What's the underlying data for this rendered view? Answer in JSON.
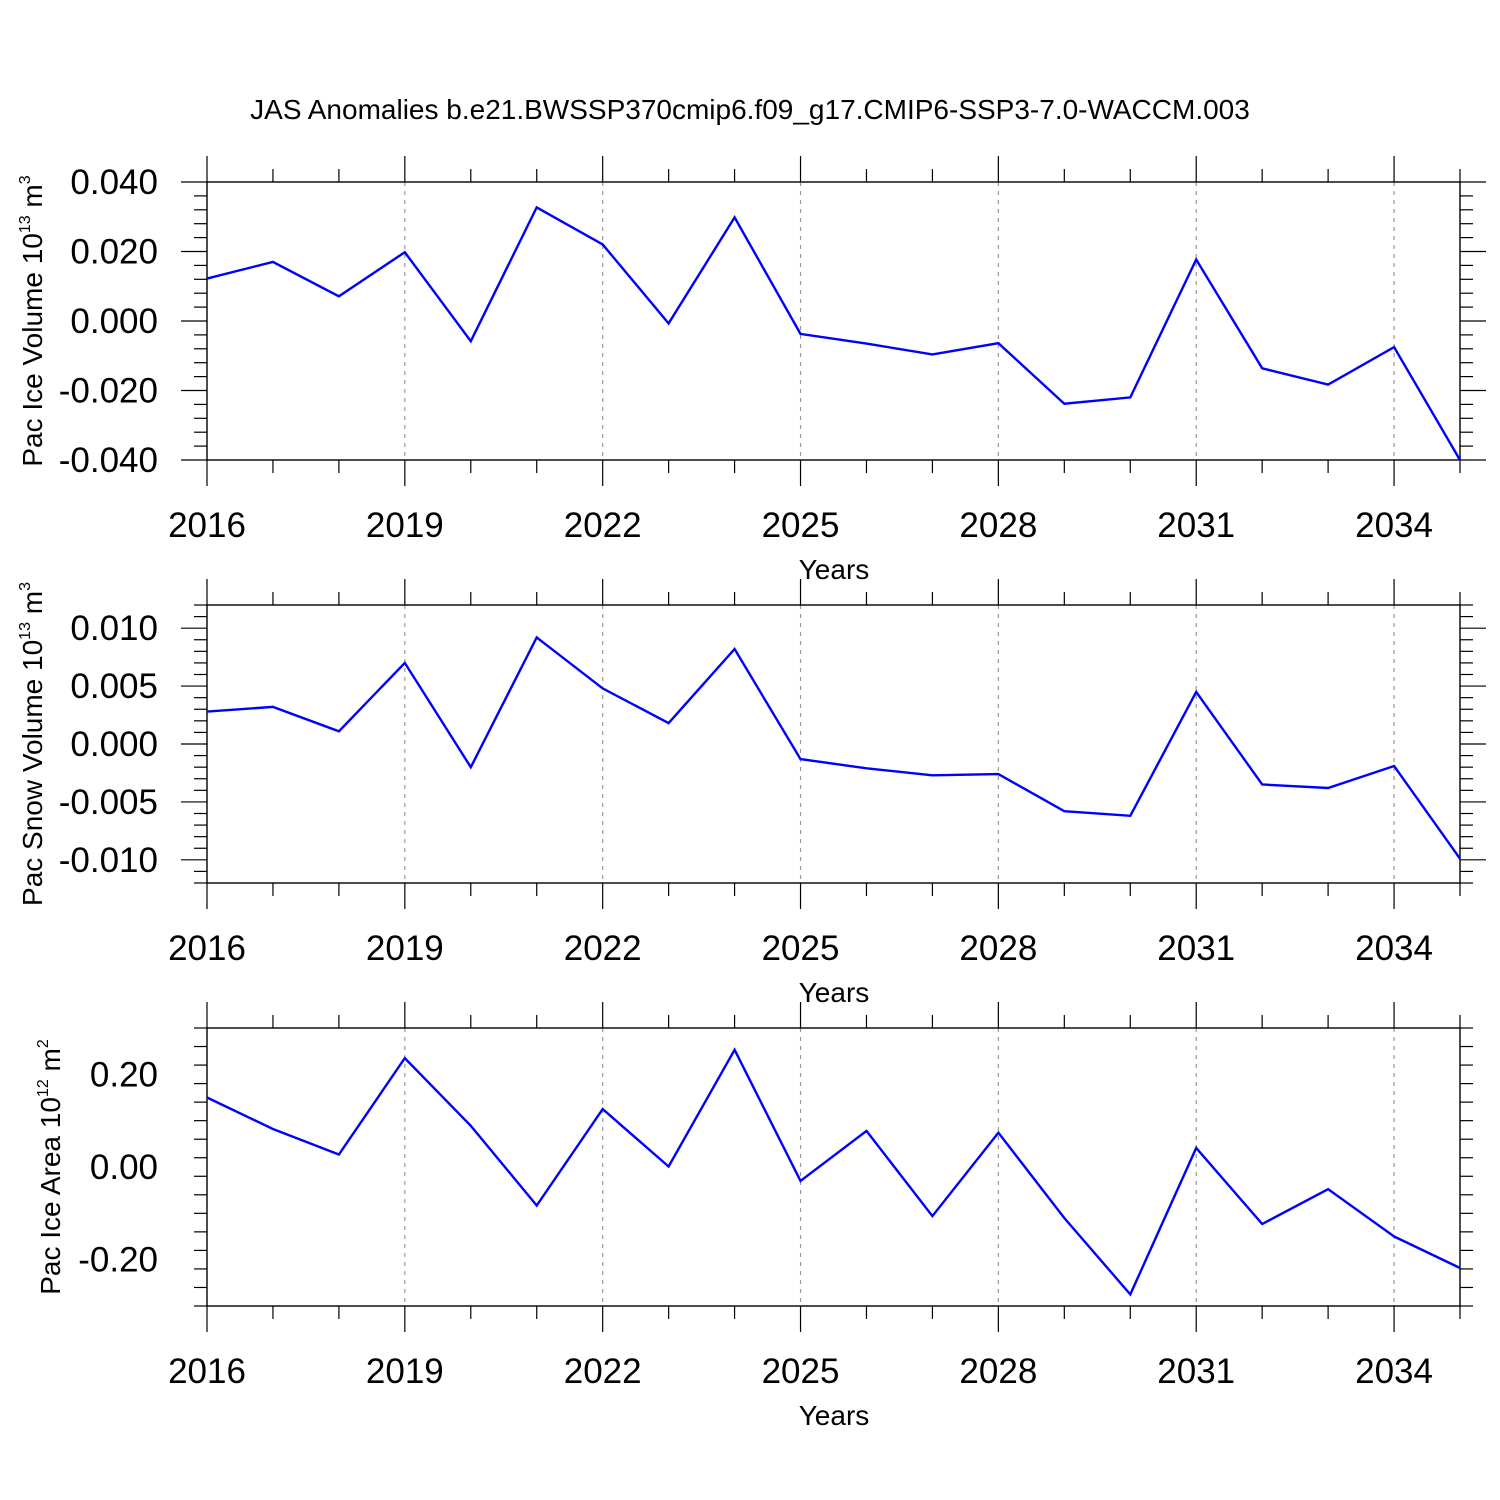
{
  "title": "JAS Anomalies b.e21.BWSSP370cmip6.f09_g17.CMIP6-SSP3-7.0-WACCM.003",
  "colors": {
    "line": "#0000ff",
    "axis": "#000000",
    "grid": "#999999"
  },
  "chart_data": [
    {
      "type": "line",
      "ylabel": {
        "text": "Pac Ice Volume 10",
        "exp": "13",
        "unit": "m",
        "unit_exp": "3"
      },
      "xlabel": "Years",
      "x": [
        2016,
        2017,
        2018,
        2019,
        2020,
        2021,
        2022,
        2023,
        2024,
        2025,
        2026,
        2027,
        2028,
        2029,
        2030,
        2031,
        2032,
        2033,
        2034,
        2035
      ],
      "values": [
        0.0122,
        0.017,
        0.0071,
        0.0198,
        -0.0058,
        0.0327,
        0.022,
        -0.0007,
        0.0298,
        -0.0037,
        -0.0065,
        -0.0096,
        -0.0064,
        -0.0238,
        -0.022,
        0.0177,
        -0.0136,
        -0.0183,
        -0.0075,
        -0.04
      ],
      "xlim": [
        2016,
        2035
      ],
      "ylim": [
        -0.04,
        0.04
      ],
      "xticks": [
        "2016",
        "2019",
        "2022",
        "2025",
        "2028",
        "2031",
        "2034"
      ],
      "yticks": [
        "0.040",
        "0.020",
        "0.000",
        "-0.020",
        "-0.040"
      ],
      "ytick_values": [
        0.04,
        0.02,
        0.0,
        -0.02,
        -0.04
      ],
      "grid": "vertical dashed at major x ticks"
    },
    {
      "type": "line",
      "ylabel": {
        "text": "Pac Snow Volume 10",
        "exp": "13",
        "unit": "m",
        "unit_exp": "3"
      },
      "xlabel": "Years",
      "x": [
        2016,
        2017,
        2018,
        2019,
        2020,
        2021,
        2022,
        2023,
        2024,
        2025,
        2026,
        2027,
        2028,
        2029,
        2030,
        2031,
        2032,
        2033,
        2034,
        2035
      ],
      "values": [
        0.0028,
        0.0032,
        0.0011,
        0.007,
        -0.002,
        0.0092,
        0.0048,
        0.0018,
        0.0082,
        -0.0013,
        -0.0021,
        -0.0027,
        -0.0026,
        -0.0058,
        -0.0062,
        0.0045,
        -0.0035,
        -0.0038,
        -0.0019,
        -0.0099
      ],
      "xlim": [
        2016,
        2035
      ],
      "ylim": [
        -0.012,
        0.012
      ],
      "xticks": [
        "2016",
        "2019",
        "2022",
        "2025",
        "2028",
        "2031",
        "2034"
      ],
      "yticks": [
        "0.010",
        "0.005",
        "0.000",
        "-0.005",
        "-0.010"
      ],
      "ytick_values": [
        0.01,
        0.005,
        0.0,
        -0.005,
        -0.01
      ],
      "grid": "vertical dashed at major x ticks"
    },
    {
      "type": "line",
      "ylabel": {
        "text": "Pac Ice Area 10",
        "exp": "12",
        "unit": "m",
        "unit_exp": "2"
      },
      "xlabel": "Years",
      "x": [
        2016,
        2017,
        2018,
        2019,
        2020,
        2021,
        2022,
        2023,
        2024,
        2025,
        2026,
        2027,
        2028,
        2029,
        2030,
        2031,
        2032,
        2033,
        2034,
        2035
      ],
      "values": [
        0.15,
        0.082,
        0.027,
        0.235,
        0.089,
        -0.083,
        0.125,
        0.001,
        0.253,
        -0.03,
        0.078,
        -0.106,
        0.074,
        -0.11,
        -0.275,
        0.041,
        -0.123,
        -0.048,
        -0.15,
        -0.218
      ],
      "xlim": [
        2016,
        2035
      ],
      "ylim": [
        -0.3,
        0.3
      ],
      "xticks": [
        "2016",
        "2019",
        "2022",
        "2025",
        "2028",
        "2031",
        "2034"
      ],
      "yticks": [
        "0.20",
        "0.00",
        "-0.20"
      ],
      "ytick_values": [
        0.2,
        0.0,
        -0.2
      ],
      "grid": "vertical dashed at major x ticks"
    }
  ]
}
